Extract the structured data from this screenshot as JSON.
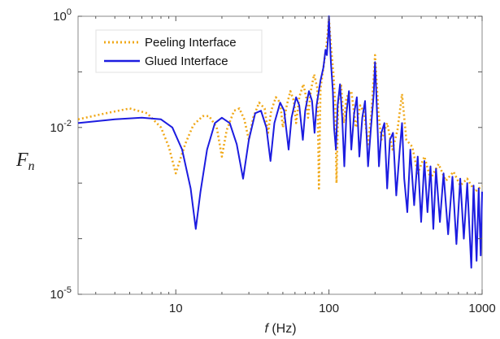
{
  "chart_data": {
    "type": "line",
    "xscale": "log",
    "yscale": "log",
    "xlim": [
      2.3,
      1000
    ],
    "ylim": [
      1e-05,
      1
    ],
    "xticks": [
      {
        "value": 10,
        "label": "10"
      },
      {
        "value": 100,
        "label": "100"
      },
      {
        "value": 1000,
        "label": "1000"
      }
    ],
    "yticks": [
      {
        "value": 1,
        "base": "10",
        "exp": "0"
      },
      {
        "value": 0.01,
        "base": "10",
        "exp": "-2"
      },
      {
        "value": 1e-05,
        "base": "10",
        "exp": "-5"
      }
    ],
    "xlabel_var": "f",
    "xlabel_unit": " (Hz)",
    "ylabel": "F",
    "ylabel_sub": "n",
    "grid": false,
    "legend_position": "top-left",
    "series": [
      {
        "name": "Peeling Interface",
        "color": "#f0a818",
        "style": "dotted",
        "points": [
          [
            2.3,
            0.014
          ],
          [
            3.5,
            0.018
          ],
          [
            5,
            0.022
          ],
          [
            6.5,
            0.018
          ],
          [
            8,
            0.01
          ],
          [
            9,
            0.0045
          ],
          [
            10,
            0.0015
          ],
          [
            11.5,
            0.005
          ],
          [
            13,
            0.011
          ],
          [
            15,
            0.016
          ],
          [
            16.5,
            0.016
          ],
          [
            18.5,
            0.01
          ],
          [
            20,
            0.003
          ],
          [
            21.5,
            0.009
          ],
          [
            24,
            0.02
          ],
          [
            26,
            0.022
          ],
          [
            28,
            0.014
          ],
          [
            30,
            0.006
          ],
          [
            32,
            0.015
          ],
          [
            35,
            0.028
          ],
          [
            38,
            0.022
          ],
          [
            40,
            0.008
          ],
          [
            42,
            0.02
          ],
          [
            45,
            0.035
          ],
          [
            48,
            0.028
          ],
          [
            50,
            0.01
          ],
          [
            53,
            0.025
          ],
          [
            56,
            0.045
          ],
          [
            59,
            0.03
          ],
          [
            61,
            0.012
          ],
          [
            64,
            0.035
          ],
          [
            68,
            0.06
          ],
          [
            71,
            0.035
          ],
          [
            73,
            0.015
          ],
          [
            76,
            0.045
          ],
          [
            80,
            0.09
          ],
          [
            84,
            0.05
          ],
          [
            86,
            0.0008
          ],
          [
            88,
            0.05
          ],
          [
            93,
            0.15
          ],
          [
            97,
            0.35
          ],
          [
            100,
            0.9
          ],
          [
            103,
            0.3
          ],
          [
            107,
            0.09
          ],
          [
            110,
            0.025
          ],
          [
            112,
            0.001
          ],
          [
            115,
            0.03
          ],
          [
            120,
            0.06
          ],
          [
            125,
            0.012
          ],
          [
            130,
            0.035
          ],
          [
            140,
            0.045
          ],
          [
            150,
            0.01
          ],
          [
            160,
            0.025
          ],
          [
            170,
            0.018
          ],
          [
            180,
            0.005
          ],
          [
            190,
            0.02
          ],
          [
            200,
            0.2
          ],
          [
            210,
            0.02
          ],
          [
            220,
            0.006
          ],
          [
            240,
            0.012
          ],
          [
            260,
            0.004
          ],
          [
            280,
            0.009
          ],
          [
            300,
            0.04
          ],
          [
            320,
            0.006
          ],
          [
            350,
            0.0045
          ],
          [
            380,
            0.0015
          ],
          [
            420,
            0.003
          ],
          [
            460,
            0.0012
          ],
          [
            520,
            0.0022
          ],
          [
            580,
            0.0011
          ],
          [
            650,
            0.0016
          ],
          [
            720,
            0.0009
          ],
          [
            800,
            0.0012
          ],
          [
            900,
            0.0007
          ],
          [
            1000,
            0.0009
          ]
        ]
      },
      {
        "name": "Glued Interface",
        "color": "#1c1ce0",
        "style": "solid",
        "points": [
          [
            2.3,
            0.012
          ],
          [
            4,
            0.014
          ],
          [
            6,
            0.015
          ],
          [
            8,
            0.014
          ],
          [
            9.5,
            0.01
          ],
          [
            11,
            0.004
          ],
          [
            12.5,
            0.0008
          ],
          [
            13.5,
            0.00015
          ],
          [
            14.5,
            0.0007
          ],
          [
            16,
            0.004
          ],
          [
            18,
            0.012
          ],
          [
            20,
            0.015
          ],
          [
            22.5,
            0.012
          ],
          [
            25,
            0.005
          ],
          [
            27.5,
            0.0012
          ],
          [
            30,
            0.006
          ],
          [
            33,
            0.018
          ],
          [
            36,
            0.02
          ],
          [
            39,
            0.01
          ],
          [
            41.5,
            0.0025
          ],
          [
            44,
            0.012
          ],
          [
            48,
            0.028
          ],
          [
            51,
            0.02
          ],
          [
            54.5,
            0.004
          ],
          [
            57,
            0.015
          ],
          [
            61,
            0.035
          ],
          [
            64,
            0.025
          ],
          [
            67.5,
            0.006
          ],
          [
            70,
            0.02
          ],
          [
            74,
            0.045
          ],
          [
            77.5,
            0.03
          ],
          [
            80.5,
            0.008
          ],
          [
            83,
            0.025
          ],
          [
            88,
            0.07
          ],
          [
            92,
            0.12
          ],
          [
            95,
            0.25
          ],
          [
            97,
            0.2
          ],
          [
            99,
            0.5
          ],
          [
            100,
            1.0
          ],
          [
            101,
            0.5
          ],
          [
            103,
            0.15
          ],
          [
            106,
            0.045
          ],
          [
            108,
            0.01
          ],
          [
            111,
            0.004
          ],
          [
            114,
            0.025
          ],
          [
            118,
            0.06
          ],
          [
            122,
            0.015
          ],
          [
            126,
            0.002
          ],
          [
            130,
            0.018
          ],
          [
            135,
            0.045
          ],
          [
            140,
            0.004
          ],
          [
            146,
            0.018
          ],
          [
            152,
            0.035
          ],
          [
            158,
            0.003
          ],
          [
            165,
            0.015
          ],
          [
            172,
            0.03
          ],
          [
            180,
            0.002
          ],
          [
            188,
            0.01
          ],
          [
            196,
            0.04
          ],
          [
            200,
            0.15
          ],
          [
            204,
            0.04
          ],
          [
            212,
            0.002
          ],
          [
            220,
            0.008
          ],
          [
            230,
            0.012
          ],
          [
            240,
            0.0008
          ],
          [
            250,
            0.006
          ],
          [
            262,
            0.008
          ],
          [
            275,
            0.0006
          ],
          [
            290,
            0.004
          ],
          [
            300,
            0.012
          ],
          [
            310,
            0.0012
          ],
          [
            325,
            0.0003
          ],
          [
            340,
            0.004
          ],
          [
            360,
            0.0004
          ],
          [
            380,
            0.003
          ],
          [
            400,
            0.0002
          ],
          [
            420,
            0.0025
          ],
          [
            440,
            0.0003
          ],
          [
            460,
            0.002
          ],
          [
            480,
            0.00015
          ],
          [
            500,
            0.0018
          ],
          [
            530,
            0.0002
          ],
          [
            560,
            0.0015
          ],
          [
            600,
            0.00012
          ],
          [
            640,
            0.0013
          ],
          [
            680,
            8e-05
          ],
          [
            720,
            0.0012
          ],
          [
            760,
            0.0001
          ],
          [
            800,
            0.001
          ],
          [
            850,
            3e-05
          ],
          [
            880,
            0.0009
          ],
          [
            920,
            4e-05
          ],
          [
            950,
            0.0008
          ],
          [
            980,
            5e-05
          ],
          [
            1000,
            0.0007
          ]
        ]
      }
    ]
  }
}
